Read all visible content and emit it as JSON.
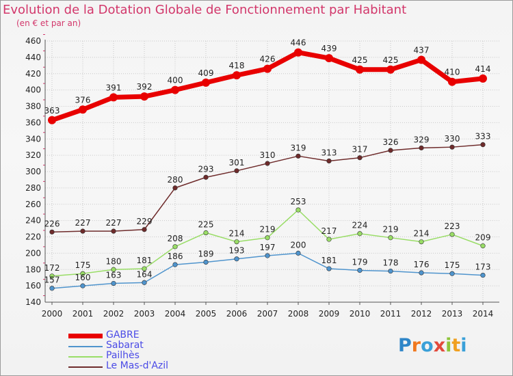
{
  "header": {
    "title": "Evolution de la Dotation Globale de Fonctionnement par Habitant",
    "subtitle": "(en € et par an)"
  },
  "logo": {
    "text": "Proxiti",
    "letters": [
      {
        "ch": "P",
        "color": "#2f86c8"
      },
      {
        "ch": "r",
        "color": "#f07820"
      },
      {
        "ch": "o",
        "color": "#3aa0d8"
      },
      {
        "ch": "x",
        "color": "#e24a3c"
      },
      {
        "ch": "i",
        "color": "#8ec43a"
      },
      {
        "ch": "t",
        "color": "#f0a020"
      },
      {
        "ch": "i",
        "color": "#3aa0d8"
      }
    ]
  },
  "chart_data": {
    "type": "line",
    "title": "Evolution de la Dotation Globale de Fonctionnement par Habitant",
    "subtitle": "(en € et par an)",
    "x": [
      "2000",
      "2001",
      "2002",
      "2003",
      "2004",
      "2005",
      "2006",
      "2007",
      "2008",
      "2009",
      "2010",
      "2011",
      "2012",
      "2013",
      "2014"
    ],
    "ylim": [
      140,
      460
    ],
    "yticks": [
      140,
      160,
      180,
      200,
      220,
      240,
      260,
      280,
      300,
      320,
      340,
      360,
      380,
      400,
      420,
      440,
      460
    ],
    "grid": true,
    "legend": "bottom-left",
    "series": [
      {
        "name": "GABRE",
        "color": "#e80000",
        "values": [
          363,
          376,
          391,
          392,
          400,
          409,
          418,
          426,
          446,
          439,
          425,
          425,
          437,
          410,
          414
        ]
      },
      {
        "name": "Sabarat",
        "color": "#4f94cd",
        "values": [
          157,
          160,
          163,
          164,
          186,
          189,
          193,
          197,
          200,
          181,
          179,
          178,
          176,
          175,
          173
        ]
      },
      {
        "name": "Pailhès",
        "color": "#99dd66",
        "values": [
          172,
          175,
          180,
          181,
          208,
          225,
          214,
          219,
          253,
          217,
          224,
          219,
          214,
          223,
          209
        ]
      },
      {
        "name": "Le Mas-d'Azil",
        "color": "#6e2b2b",
        "values": [
          226,
          227,
          227,
          229,
          280,
          293,
          301,
          310,
          319,
          313,
          317,
          326,
          329,
          330,
          333
        ]
      }
    ]
  }
}
